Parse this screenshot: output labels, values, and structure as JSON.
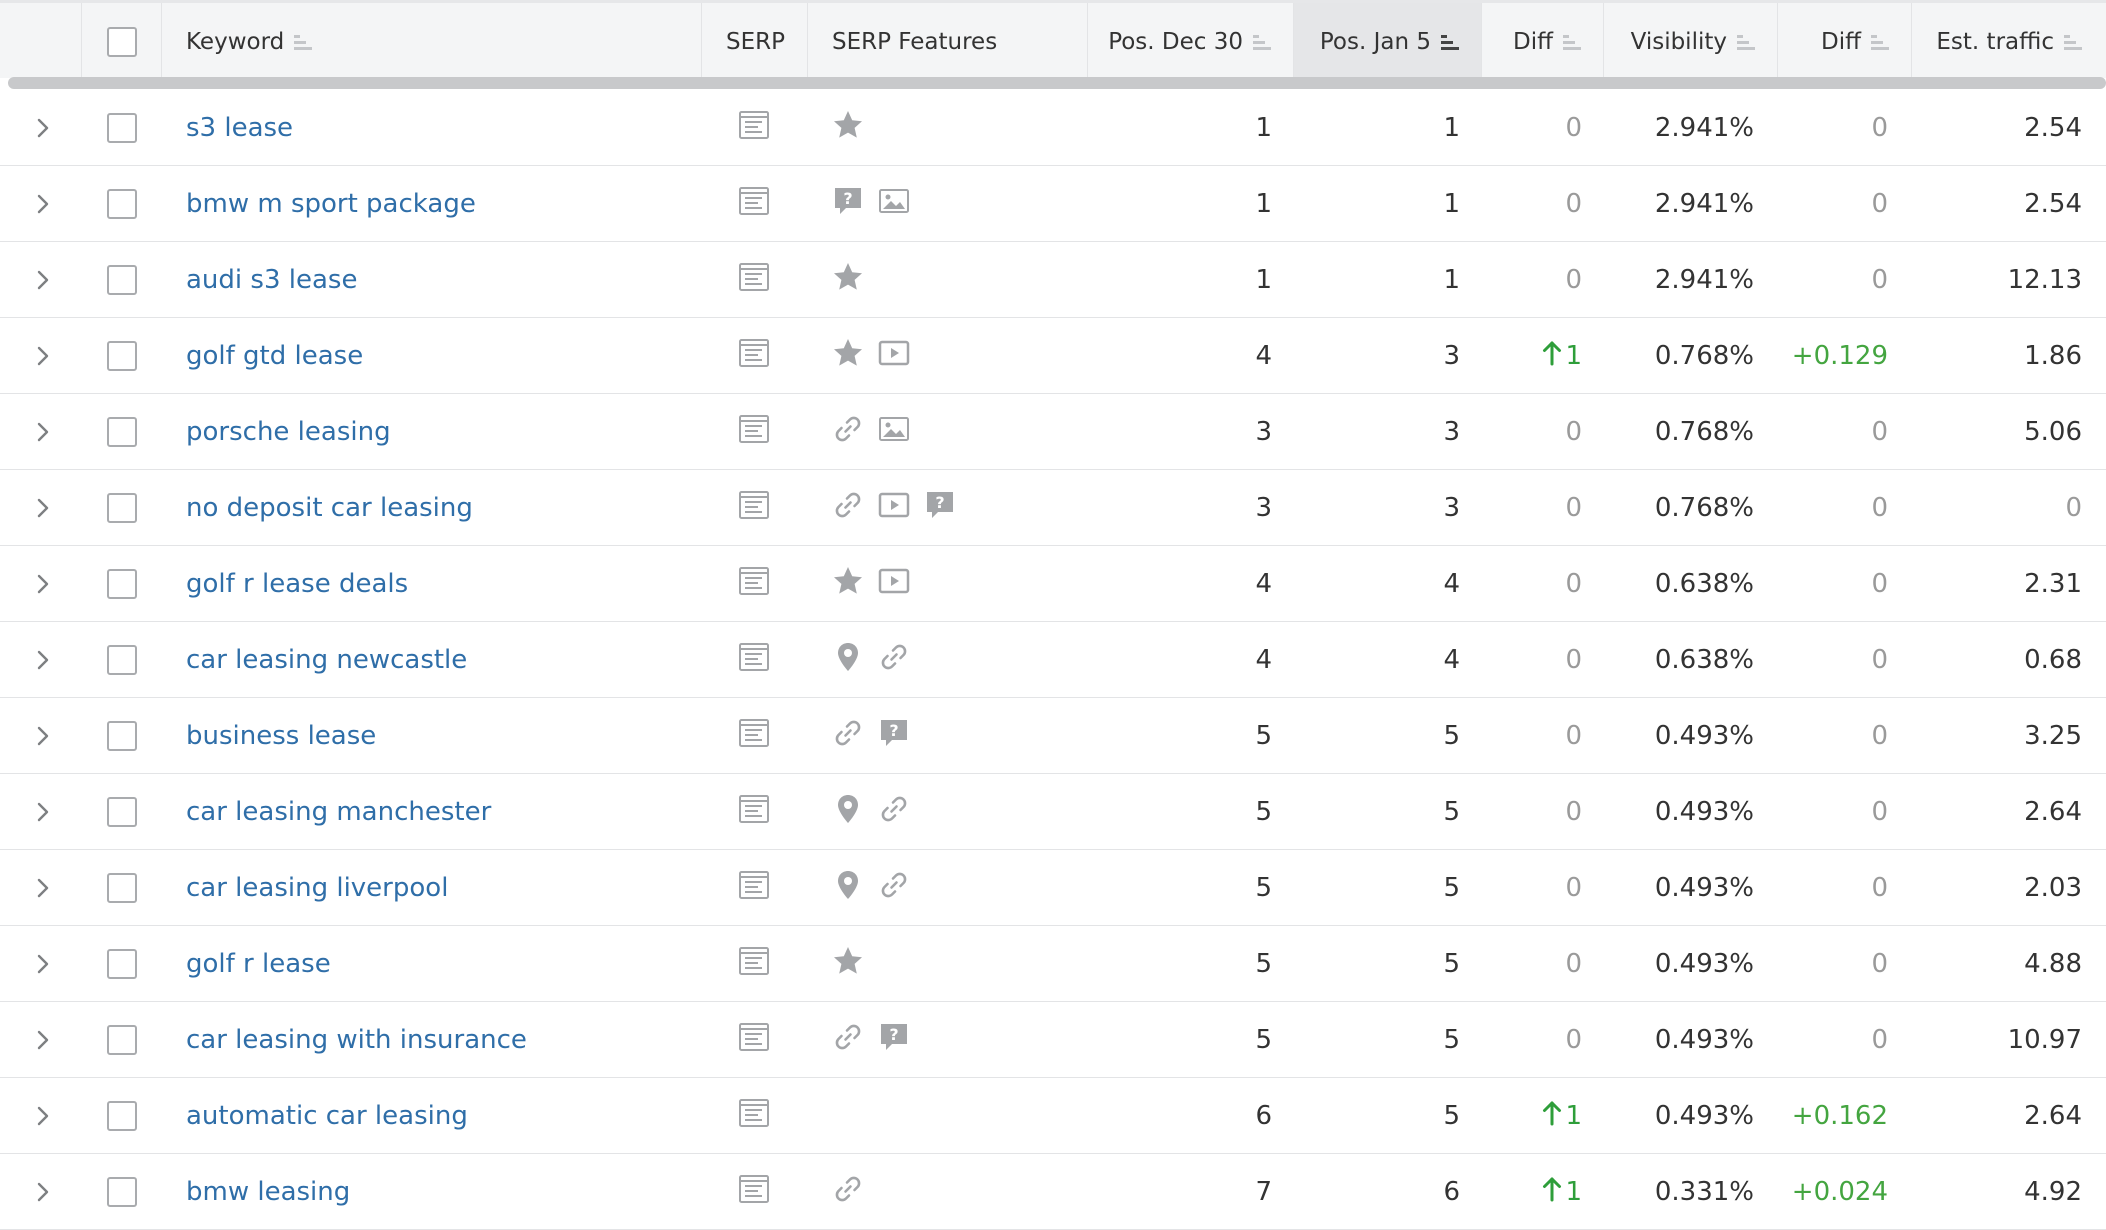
{
  "columns": {
    "keyword": "Keyword",
    "serp": "SERP",
    "serp_features": "SERP Features",
    "pos_prev": "Pos. Dec 30",
    "pos_curr": "Pos. Jan 5",
    "diff": "Diff",
    "visibility": "Visibility",
    "vis_diff": "Diff",
    "traffic": "Est. traffic"
  },
  "sorted_column": "pos_curr",
  "colors": {
    "link": "#2f6ea8",
    "positive": "#2e9e3a",
    "muted": "#9a9a9a",
    "header_bg": "#f4f5f6",
    "icon_gray": "#a3a5a8"
  },
  "rows": [
    {
      "keyword": "s3 lease",
      "features": [
        "star-icon"
      ],
      "pos_prev": "1",
      "pos_curr": "1",
      "diff": "0",
      "visibility": "2.941%",
      "vis_diff": "0",
      "traffic": "2.54"
    },
    {
      "keyword": "bmw m sport package",
      "features": [
        "question-icon",
        "image-icon"
      ],
      "pos_prev": "1",
      "pos_curr": "1",
      "diff": "0",
      "visibility": "2.941%",
      "vis_diff": "0",
      "traffic": "2.54"
    },
    {
      "keyword": "audi s3 lease",
      "features": [
        "star-icon"
      ],
      "pos_prev": "1",
      "pos_curr": "1",
      "diff": "0",
      "visibility": "2.941%",
      "vis_diff": "0",
      "traffic": "12.13"
    },
    {
      "keyword": "golf gtd lease",
      "features": [
        "star-icon",
        "video-icon"
      ],
      "pos_prev": "4",
      "pos_curr": "3",
      "diff": "1",
      "diff_up": true,
      "visibility": "0.768%",
      "vis_diff": "+0.129",
      "traffic": "1.86"
    },
    {
      "keyword": "porsche leasing",
      "features": [
        "link-icon",
        "image-icon"
      ],
      "pos_prev": "3",
      "pos_curr": "3",
      "diff": "0",
      "visibility": "0.768%",
      "vis_diff": "0",
      "traffic": "5.06"
    },
    {
      "keyword": "no deposit car leasing",
      "features": [
        "link-icon",
        "video-icon",
        "question-icon"
      ],
      "pos_prev": "3",
      "pos_curr": "3",
      "diff": "0",
      "visibility": "0.768%",
      "vis_diff": "0",
      "traffic": "0"
    },
    {
      "keyword": "golf r lease deals",
      "features": [
        "star-icon",
        "video-icon"
      ],
      "pos_prev": "4",
      "pos_curr": "4",
      "diff": "0",
      "visibility": "0.638%",
      "vis_diff": "0",
      "traffic": "2.31"
    },
    {
      "keyword": "car leasing newcastle",
      "features": [
        "pin-icon",
        "link-icon"
      ],
      "pos_prev": "4",
      "pos_curr": "4",
      "diff": "0",
      "visibility": "0.638%",
      "vis_diff": "0",
      "traffic": "0.68"
    },
    {
      "keyword": "business lease",
      "features": [
        "link-icon",
        "question-icon"
      ],
      "pos_prev": "5",
      "pos_curr": "5",
      "diff": "0",
      "visibility": "0.493%",
      "vis_diff": "0",
      "traffic": "3.25"
    },
    {
      "keyword": "car leasing manchester",
      "features": [
        "pin-icon",
        "link-icon"
      ],
      "pos_prev": "5",
      "pos_curr": "5",
      "diff": "0",
      "visibility": "0.493%",
      "vis_diff": "0",
      "traffic": "2.64"
    },
    {
      "keyword": "car leasing liverpool",
      "features": [
        "pin-icon",
        "link-icon"
      ],
      "pos_prev": "5",
      "pos_curr": "5",
      "diff": "0",
      "visibility": "0.493%",
      "vis_diff": "0",
      "traffic": "2.03"
    },
    {
      "keyword": "golf r lease",
      "features": [
        "star-icon"
      ],
      "pos_prev": "5",
      "pos_curr": "5",
      "diff": "0",
      "visibility": "0.493%",
      "vis_diff": "0",
      "traffic": "4.88"
    },
    {
      "keyword": "car leasing with insurance",
      "features": [
        "link-icon",
        "question-icon"
      ],
      "pos_prev": "5",
      "pos_curr": "5",
      "diff": "0",
      "visibility": "0.493%",
      "vis_diff": "0",
      "traffic": "10.97"
    },
    {
      "keyword": "automatic car leasing",
      "features": [],
      "pos_prev": "6",
      "pos_curr": "5",
      "diff": "1",
      "diff_up": true,
      "visibility": "0.493%",
      "vis_diff": "+0.162",
      "traffic": "2.64"
    },
    {
      "keyword": "bmw leasing",
      "features": [
        "link-icon"
      ],
      "pos_prev": "7",
      "pos_curr": "6",
      "diff": "1",
      "diff_up": true,
      "visibility": "0.331%",
      "vis_diff": "+0.024",
      "traffic": "4.92"
    }
  ]
}
